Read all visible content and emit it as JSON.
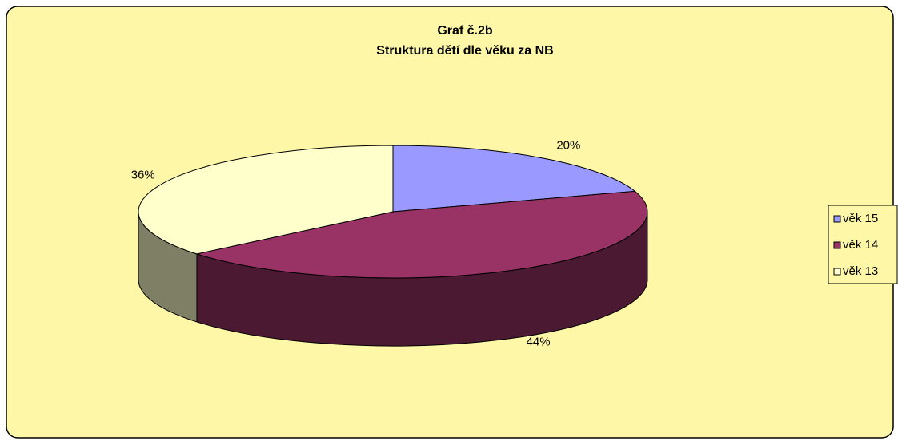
{
  "chart_data": {
    "type": "pie3d",
    "title": "Graf č.2b",
    "subtitle": "Struktura dětí dle věku za NB",
    "categories": [
      "věk 15",
      "věk 14",
      "věk 13"
    ],
    "values": [
      20,
      44,
      36
    ],
    "value_labels": [
      "20%",
      "44%",
      "36%"
    ],
    "colors": [
      "#9999ff",
      "#993366",
      "#ffffcc"
    ],
    "legend": "right"
  }
}
